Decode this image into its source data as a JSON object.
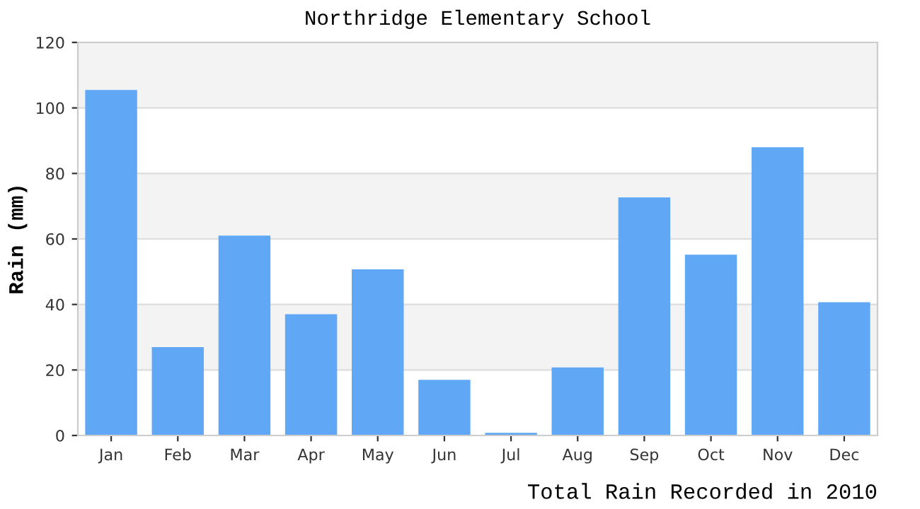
{
  "chart_data": {
    "type": "bar",
    "title": "Northridge Elementary School",
    "xlabel": "Total Rain Recorded in 2010",
    "ylabel": "Rain (mm)",
    "categories": [
      "Jan",
      "Feb",
      "Mar",
      "Apr",
      "May",
      "Jun",
      "Jul",
      "Aug",
      "Sep",
      "Oct",
      "Nov",
      "Dec"
    ],
    "values": [
      105.5,
      27,
      61,
      37,
      50.7,
      17,
      0.8,
      20.8,
      72.7,
      55.2,
      88,
      40.7
    ],
    "color": "#60a8f5",
    "ylim": [
      0,
      120
    ],
    "yticks": [
      0,
      20,
      40,
      60,
      80,
      100,
      120
    ],
    "grid": "y",
    "bands": [
      {
        "axis": "y",
        "from": 20,
        "to": 40,
        "color": "#f3f3f3"
      },
      {
        "axis": "y",
        "from": 60,
        "to": 80,
        "color": "#f3f3f3"
      },
      {
        "axis": "y",
        "from": 100,
        "to": 120,
        "color": "#f3f3f3"
      }
    ]
  }
}
